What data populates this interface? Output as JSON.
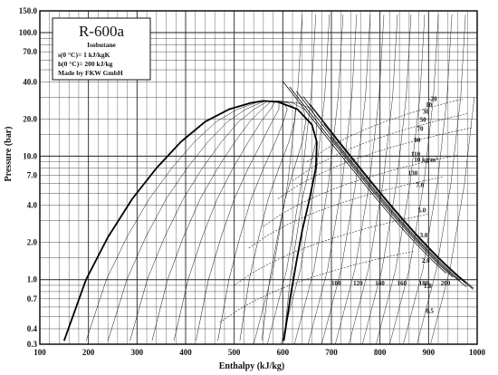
{
  "chart_data": {
    "type": "line",
    "title": "R-600a",
    "subtitle": "Isobutane",
    "notes": [
      "s(0 °C)= 1 kJ/kgK",
      "h(0 °C)= 200 kJ/kg",
      "Made by FKW GmbH"
    ],
    "xlabel": "Enthalpy (kJ/kg)",
    "ylabel": "Pressure (bar)",
    "xlim": [
      100,
      1000
    ],
    "ylim": [
      0.3,
      150.0
    ],
    "y_scale": "log",
    "grid": true,
    "x_ticks": [
      "100",
      "200",
      "300",
      "400",
      "500",
      "600",
      "700",
      "800",
      "900",
      "1000"
    ],
    "y_ticks": [
      {
        "value": 0.3,
        "label": "0.3"
      },
      {
        "value": 0.4,
        "label": "0.4"
      },
      {
        "value": 0.7,
        "label": "0.7"
      },
      {
        "value": 1.0,
        "label": "1.0"
      },
      {
        "value": 2.0,
        "label": "2.0"
      },
      {
        "value": 4.0,
        "label": "4.0"
      },
      {
        "value": 7.0,
        "label": "7.0"
      },
      {
        "value": 10.0,
        "label": "10.0"
      },
      {
        "value": 20.0,
        "label": "20.0"
      },
      {
        "value": 40.0,
        "label": "40.0"
      },
      {
        "value": 70.0,
        "label": "70.0"
      },
      {
        "value": 100.0,
        "label": "100.0"
      },
      {
        "value": 150.0,
        "label": "150.0"
      }
    ],
    "series": [
      {
        "points": [
          [
            150,
            0.32
          ],
          [
            195,
            1.0
          ],
          [
            240,
            2.2
          ],
          [
            290,
            4.5
          ],
          [
            340,
            8.0
          ],
          [
            390,
            13.0
          ],
          [
            440,
            19.0
          ],
          [
            490,
            24.0
          ],
          [
            535,
            27.0
          ],
          [
            560,
            28.0
          ],
          [
            590,
            27.5
          ],
          [
            630,
            24.0
          ],
          [
            660,
            18.0
          ],
          [
            670,
            13.0
          ],
          [
            668,
            8.0
          ],
          [
            655,
            4.5
          ],
          [
            640,
            2.5
          ],
          [
            628,
            1.4
          ],
          [
            615,
            0.7
          ],
          [
            602,
            0.32
          ]
        ]
      }
    ],
    "isotherm_labels": [
      "-20",
      "10",
      "30",
      "50",
      "70",
      "90",
      "110",
      "130"
    ],
    "isochore_labels": [
      "10 kg/m³",
      "7.0",
      "5.0",
      "3.0",
      "2.0",
      "1.0",
      "0.5"
    ],
    "isentrope_labels": [
      "100",
      "120",
      "140",
      "160",
      "180",
      "200"
    ]
  }
}
